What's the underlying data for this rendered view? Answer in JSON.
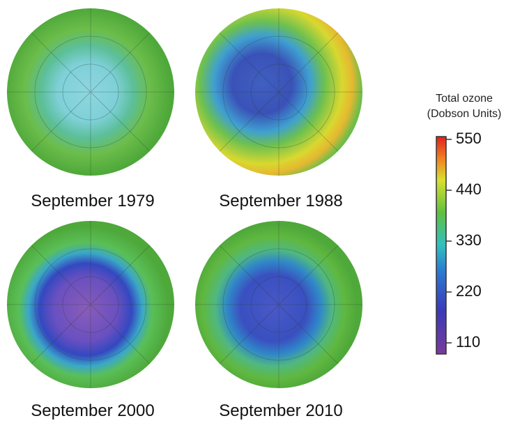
{
  "panels": [
    {
      "label": "September 1979"
    },
    {
      "label": "September 1988"
    },
    {
      "label": "September 2000"
    },
    {
      "label": "September 2010"
    }
  ],
  "colorbar": {
    "title": "Total ozone",
    "subtitle": "(Dobson Units)",
    "ticks": [
      110,
      220,
      330,
      440,
      550
    ]
  }
}
